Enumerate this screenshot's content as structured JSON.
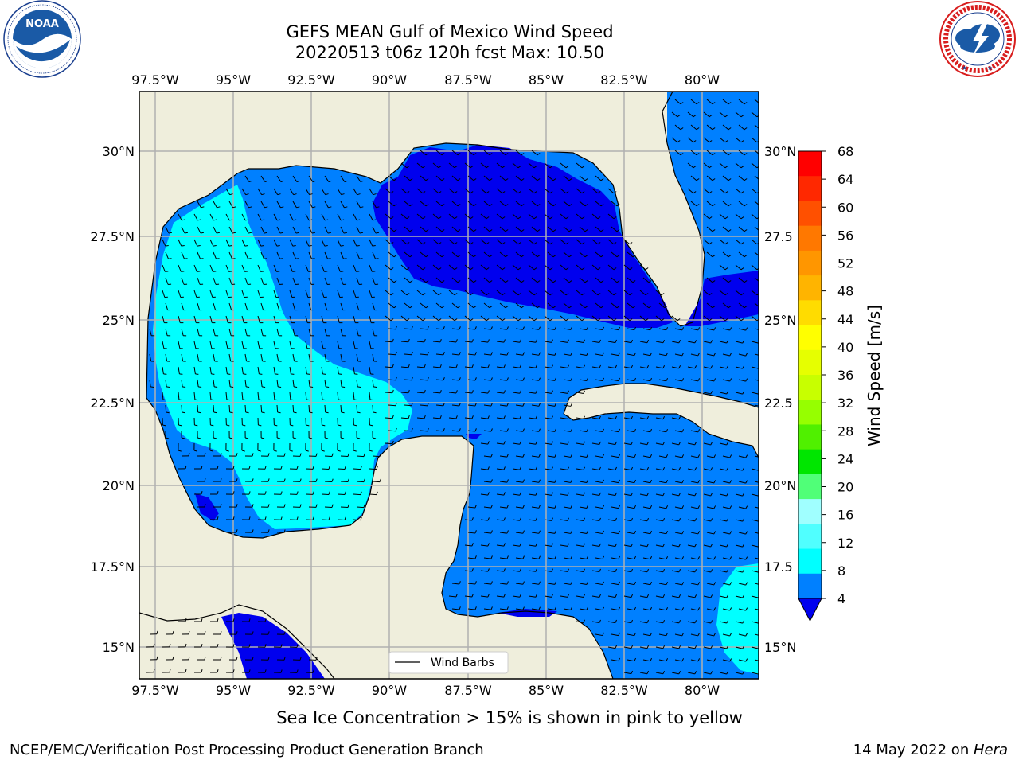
{
  "title": {
    "line1": "GEFS MEAN Gulf of Mexico Wind Speed",
    "line2": "20220513 t06z 120h fcst   Max: 10.50"
  },
  "logos": {
    "left": {
      "name": "noaa-logo",
      "text": "NOAA",
      "ring": "NATIONAL OCEANIC AND ATMOSPHERIC ADMINISTRATION · U.S. DEPARTMENT OF COMMERCE"
    },
    "right": {
      "name": "nws-logo",
      "ring": "NATIONAL WEATHER SERVICE"
    }
  },
  "map": {
    "lon_labels": [
      "97.5°W",
      "95°W",
      "92.5°W",
      "90°W",
      "87.5°W",
      "85°W",
      "82.5°W",
      "80°W"
    ],
    "lat_labels_left": [
      "30°N",
      "27.5°N",
      "25°N",
      "22.5°N",
      "20°N",
      "17.5°N",
      "15°N"
    ],
    "lat_labels_right": [
      "30°N",
      "27.5",
      "25°N",
      "22.5",
      "20°N",
      "17.5",
      "15°N"
    ],
    "legend_label": "Wind Barbs",
    "colors": {
      "land": "#efeedc",
      "band_4_8": "#0080ff",
      "band_under_4": "#0000ee",
      "band_8_12": "#00ffff"
    }
  },
  "colorbar": {
    "label": "Wind Speed [m/s]",
    "ticks": [
      "68",
      "64",
      "60",
      "56",
      "52",
      "48",
      "44",
      "40",
      "36",
      "32",
      "28",
      "24",
      "20",
      "16",
      "12",
      "8",
      "4"
    ],
    "colors": [
      "#ff0000",
      "#ff2800",
      "#ff5000",
      "#ff7800",
      "#ff9600",
      "#ffb400",
      "#ffdc00",
      "#ffff00",
      "#e6ff00",
      "#c8ff00",
      "#96ff00",
      "#50f000",
      "#00e600",
      "#50ff78",
      "#a0ffff",
      "#50ffff",
      "#00ffff",
      "#0080ff"
    ],
    "under_color": "#0000ee"
  },
  "caption": "Sea Ice Concentration > 15% is shown in pink to yellow",
  "footer": {
    "left": "NCEP/EMC/Verification Post Processing Product Generation Branch",
    "right_prefix": "14 May 2022 on ",
    "right_host": "Hera"
  }
}
